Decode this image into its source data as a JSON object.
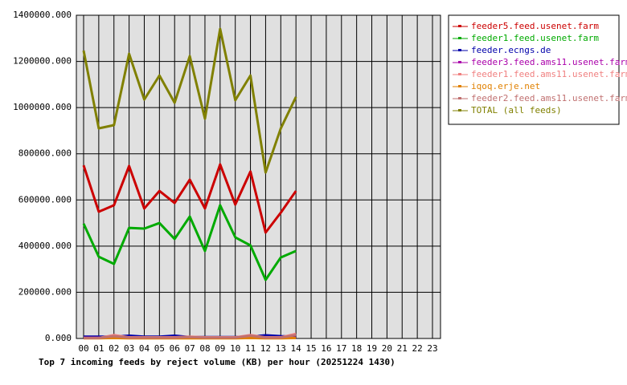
{
  "chart_data": {
    "type": "line",
    "title": "Top 7 incoming feeds by reject volume (KB) per hour (20251224 1430)",
    "categories": [
      "00",
      "01",
      "02",
      "03",
      "04",
      "05",
      "06",
      "07",
      "08",
      "09",
      "10",
      "11",
      "12",
      "13",
      "14",
      "15",
      "16",
      "17",
      "18",
      "19",
      "20",
      "21",
      "22",
      "23"
    ],
    "series": [
      {
        "name": "feeder5.feed.usenet.farm",
        "color": "#cc0000",
        "values": [
          750000,
          549000,
          577000,
          747000,
          563000,
          639000,
          587000,
          688000,
          563000,
          754000,
          580000,
          723000,
          459000,
          545000,
          639000,
          null,
          null,
          null,
          null,
          null,
          null,
          null,
          null,
          null
        ]
      },
      {
        "name": "feeder1.feed.usenet.farm",
        "color": "#00aa00",
        "values": [
          497000,
          354000,
          323000,
          479000,
          476000,
          500000,
          431000,
          528000,
          379000,
          577000,
          438000,
          403000,
          254000,
          351000,
          379000,
          null,
          null,
          null,
          null,
          null,
          null,
          null,
          null,
          null
        ]
      },
      {
        "name": "feeder.ecngs.de",
        "color": "#0000aa",
        "values": [
          8000,
          8000,
          8000,
          12000,
          8000,
          8000,
          12000,
          6000,
          6000,
          6000,
          6000,
          8000,
          14000,
          10000,
          8000,
          null,
          null,
          null,
          null,
          null,
          null,
          null,
          null,
          null
        ]
      },
      {
        "name": "feeder3.feed.ams11.usenet.farm",
        "color": "#aa00aa",
        "values": [
          3000,
          3000,
          3000,
          3000,
          3000,
          3000,
          3000,
          3000,
          3000,
          3000,
          3000,
          3000,
          3000,
          3000,
          3000,
          null,
          null,
          null,
          null,
          null,
          null,
          null,
          null,
          null
        ]
      },
      {
        "name": "feeder1.feed.ams11.usenet.farm",
        "color": "#f08080",
        "values": [
          2000,
          2000,
          15000,
          5000,
          5000,
          5000,
          5000,
          8000,
          5000,
          5000,
          5000,
          15000,
          5000,
          5000,
          20000,
          null,
          null,
          null,
          null,
          null,
          null,
          null,
          null,
          null
        ]
      },
      {
        "name": "iqoq.erje.net",
        "color": "#e08000",
        "values": [
          1000,
          1000,
          2000,
          1000,
          1000,
          1000,
          1000,
          1000,
          1000,
          1000,
          1000,
          2000,
          1000,
          1000,
          2000,
          null,
          null,
          null,
          null,
          null,
          null,
          null,
          null,
          null
        ]
      },
      {
        "name": "feeder2.feed.ams11.usenet.farm",
        "color": "#c07070",
        "values": [
          2000,
          2000,
          10000,
          4000,
          4000,
          4000,
          4000,
          6000,
          4000,
          4000,
          4000,
          12000,
          4000,
          4000,
          15000,
          null,
          null,
          null,
          null,
          null,
          null,
          null,
          null,
          null
        ]
      },
      {
        "name": "TOTAL (all feeds)",
        "color": "#808000",
        "values": [
          1247000,
          910000,
          924000,
          1233000,
          1035000,
          1139000,
          1021000,
          1223000,
          952000,
          1341000,
          1032000,
          1139000,
          719000,
          910000,
          1046000,
          null,
          null,
          null,
          null,
          null,
          null,
          null,
          null,
          null
        ]
      }
    ],
    "ylim": [
      0,
      1400000
    ],
    "yticks": [
      {
        "value": 0,
        "label": "0.000"
      },
      {
        "value": 200000,
        "label": "200000.000"
      },
      {
        "value": 400000,
        "label": "400000.000"
      },
      {
        "value": 600000,
        "label": "600000.000"
      },
      {
        "value": 800000,
        "label": "800000.000"
      },
      {
        "value": 1000000,
        "label": "1000000.000"
      },
      {
        "value": 1200000,
        "label": "1200000.000"
      },
      {
        "value": 1400000,
        "label": "1400000.000"
      }
    ],
    "grid": true,
    "legend": "right"
  }
}
